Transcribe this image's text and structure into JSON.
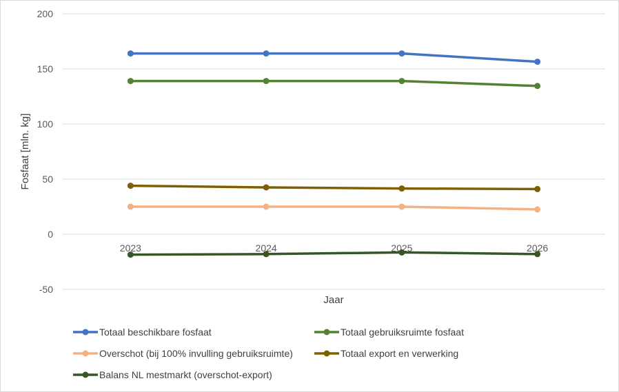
{
  "chart_data": {
    "type": "line",
    "title": "",
    "xlabel": "Jaar",
    "ylabel": "Fosfaat [mln. kg]",
    "categories": [
      "2023",
      "2024",
      "2025",
      "2026"
    ],
    "ylim": [
      -50,
      200
    ],
    "yticks": [
      "200",
      "150",
      "100",
      "50",
      "0",
      "-50"
    ],
    "grid": true,
    "legend_position": "bottom",
    "series": [
      {
        "name": "Totaal beschikbare fosfaat",
        "color": "#4472c4",
        "values": [
          164,
          164,
          164,
          156.5
        ]
      },
      {
        "name": "Totaal gebruiksruimte fosfaat",
        "color": "#548235",
        "values": [
          139,
          139,
          139,
          134.5
        ]
      },
      {
        "name": "Overschot (bij 100% invulling gebruiksruimte)",
        "color": "#f4b183",
        "values": [
          25,
          25,
          25,
          22.5
        ]
      },
      {
        "name": "Totaal export en verwerking",
        "color": "#7f6000",
        "values": [
          44,
          42.5,
          41.5,
          41
        ]
      },
      {
        "name": "Balans NL mestmarkt (overschot-export)",
        "color": "#375623",
        "values": [
          -18.5,
          -18,
          -16.5,
          -18
        ]
      }
    ]
  }
}
